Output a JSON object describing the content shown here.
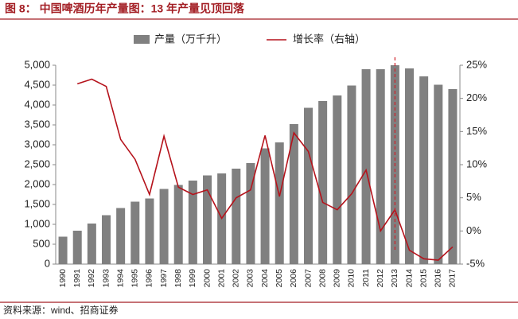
{
  "chart_data": {
    "type": "bar-line",
    "title": "图 8： 中国啤酒历年产量图：13 年产量见顶回落",
    "source": "资料来源：wind、招商证券",
    "categories": [
      "1990",
      "1991",
      "1992",
      "1993",
      "1994",
      "1995",
      "1996",
      "1997",
      "1998",
      "1999",
      "2000",
      "2001",
      "2002",
      "2003",
      "2004",
      "2005",
      "2006",
      "2007",
      "2008",
      "2009",
      "2010",
      "2011",
      "2012",
      "2013",
      "2014",
      "2015",
      "2016",
      "2017"
    ],
    "series": [
      {
        "name": "产量（万千升）",
        "color": "#808080",
        "type": "bar",
        "values": [
          690,
          840,
          1020,
          1230,
          1410,
          1570,
          1650,
          1890,
          1990,
          2100,
          2230,
          2280,
          2400,
          2540,
          2910,
          3060,
          3520,
          3930,
          4100,
          4240,
          4490,
          4900,
          4900,
          5000,
          4920,
          4720,
          4510,
          4400
        ]
      },
      {
        "name": "增长率（右轴）",
        "color": "#b5121b",
        "type": "line",
        "axis": "y2",
        "values": [
          null,
          22.2,
          22.9,
          21.8,
          13.8,
          10.8,
          5.5,
          14.3,
          6.6,
          5.5,
          6.2,
          1.9,
          5.0,
          6.2,
          14.4,
          5.2,
          14.8,
          12.0,
          4.3,
          3.2,
          5.6,
          9.2,
          0.0,
          3.2,
          -2.9,
          -4.2,
          -4.4,
          -2.4
        ]
      }
    ],
    "ylim": [
      0,
      5000
    ],
    "yticks": [
      0,
      500,
      {
        "value": 1000,
        "label": "1,000"
      },
      {
        "value": 1500,
        "label": "1,500"
      },
      {
        "value": 2000,
        "label": "2,000"
      },
      {
        "value": 2500,
        "label": "2,500"
      },
      {
        "value": 3000,
        "label": "3,000"
      },
      {
        "value": 3500,
        "label": "3,500"
      },
      {
        "value": 4000,
        "label": "4,000"
      },
      {
        "value": 4500,
        "label": "4,500"
      },
      {
        "value": 5000,
        "label": "5,000"
      }
    ],
    "y2lim": [
      -5,
      25
    ],
    "y2ticks": [
      {
        "value": -5,
        "label": "-5%"
      },
      {
        "value": 0,
        "label": "0%"
      },
      {
        "value": 5,
        "label": "5%"
      },
      {
        "value": 10,
        "label": "10%"
      },
      {
        "value": 15,
        "label": "15%"
      },
      {
        "value": 20,
        "label": "20%"
      },
      {
        "value": 25,
        "label": "25%"
      }
    ],
    "reference_category": "2013",
    "reference_color": "#d0202a"
  }
}
